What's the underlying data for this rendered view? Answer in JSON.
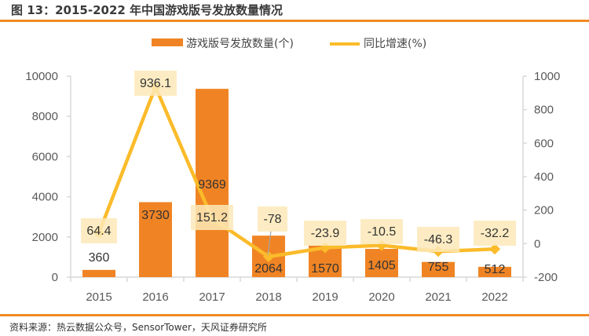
{
  "header": {
    "title": "图 13：2015-2022 年中国游戏版号发放数量情况"
  },
  "footer": {
    "source": "资料来源：热云数据公众号，SensorTower，天风证券研究所"
  },
  "colors": {
    "bar": "#f08424",
    "line": "#fbbb2a",
    "label_bg": "#fde9b8",
    "axis": "#d9d9d9",
    "rule": "#f08a24"
  },
  "chart_data": {
    "type": "bar+line",
    "title": "2015-2022 年中国游戏版号发放数量情况",
    "categories": [
      "2015",
      "2016",
      "2017",
      "2018",
      "2019",
      "2020",
      "2021",
      "2022"
    ],
    "series": [
      {
        "name": "游戏版号发放数量(个)",
        "type": "bar",
        "axis": "left",
        "values": [
          360,
          3730,
          9369,
          2064,
          1570,
          1405,
          755,
          512
        ],
        "labels": [
          "360",
          "3730",
          "9369",
          "2064",
          "1570",
          "1405",
          "755",
          "512"
        ]
      },
      {
        "name": "同比增速(%)",
        "type": "line",
        "axis": "right",
        "values": [
          64.4,
          936.1,
          151.2,
          -78,
          -23.9,
          -10.5,
          -46.3,
          -32.2
        ],
        "labels": [
          "64.4",
          "936.1",
          "151.2",
          "-78",
          "-23.9",
          "-10.5",
          "-46.3",
          "-32.2"
        ]
      }
    ],
    "y_left": {
      "min": 0,
      "max": 10000,
      "ticks": [
        "0",
        "2000",
        "4000",
        "6000",
        "8000",
        "10000"
      ]
    },
    "y_right": {
      "min": -200,
      "max": 1000,
      "ticks": [
        "-200",
        "0",
        "200",
        "400",
        "600",
        "800",
        "1000"
      ]
    },
    "legend": {
      "position": "top",
      "entries": [
        "游戏版号发放数量(个)",
        "同比增速(%)"
      ]
    },
    "grid": false
  }
}
